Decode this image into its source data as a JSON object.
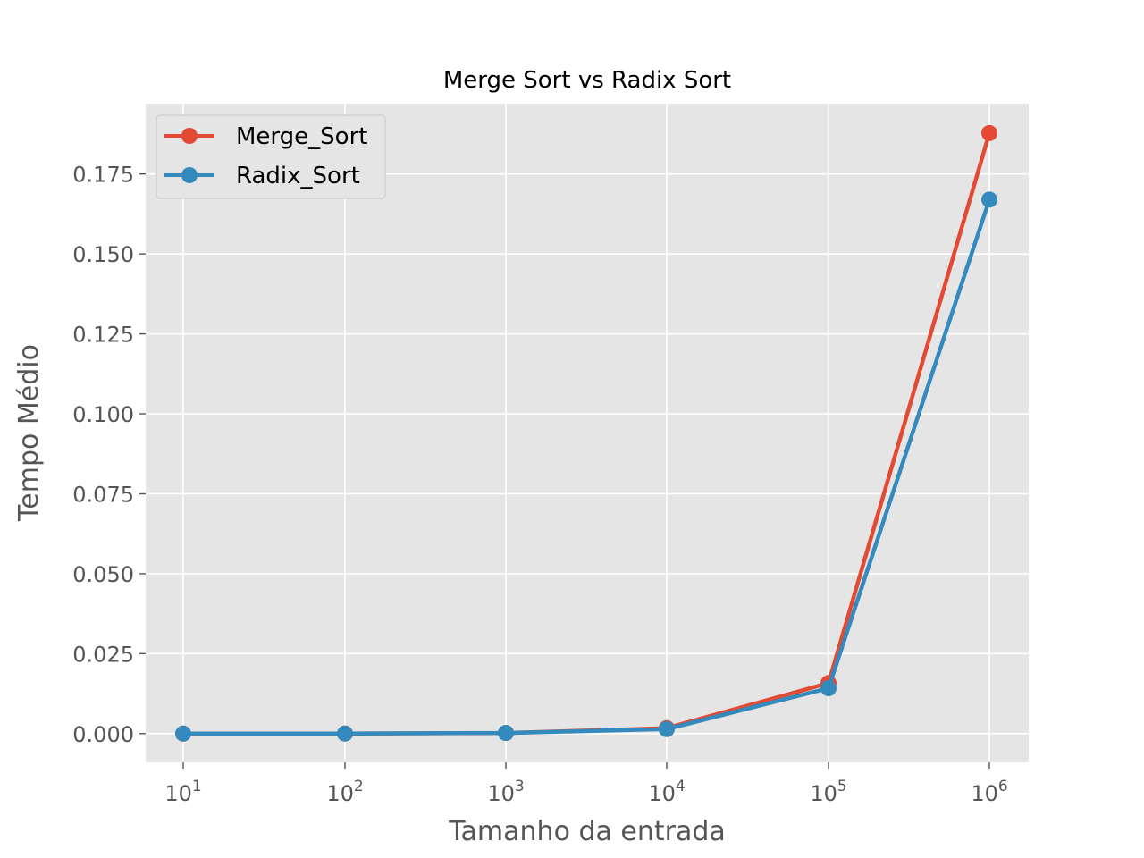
{
  "chart_data": {
    "type": "line",
    "title": "Merge Sort vs Radix Sort",
    "xlabel": "Tamanho da entrada",
    "ylabel": "Tempo Médio",
    "xscale": "log",
    "x": [
      10,
      100,
      1000,
      10000,
      100000,
      1000000
    ],
    "x_tick_labels": [
      {
        "base": "10",
        "exp": "1"
      },
      {
        "base": "10",
        "exp": "2"
      },
      {
        "base": "10",
        "exp": "3"
      },
      {
        "base": "10",
        "exp": "4"
      },
      {
        "base": "10",
        "exp": "5"
      },
      {
        "base": "10",
        "exp": "6"
      }
    ],
    "y_ticks": [
      0.0,
      0.025,
      0.05,
      0.075,
      0.1,
      0.125,
      0.15,
      0.175
    ],
    "y_tick_labels": [
      "0.000",
      "0.025",
      "0.050",
      "0.075",
      "0.100",
      "0.125",
      "0.150",
      "0.175"
    ],
    "ylim": [
      -0.009,
      0.197
    ],
    "grid": true,
    "legend_position": "top-left",
    "series": [
      {
        "name": "Merge_Sort",
        "color": "#E24A33",
        "values": [
          1e-05,
          3e-05,
          0.0002,
          0.0017,
          0.0158,
          0.1878
        ]
      },
      {
        "name": "Radix_Sort",
        "color": "#348ABD",
        "values": [
          1e-05,
          2e-05,
          0.0002,
          0.0014,
          0.0142,
          0.167
        ]
      }
    ]
  }
}
